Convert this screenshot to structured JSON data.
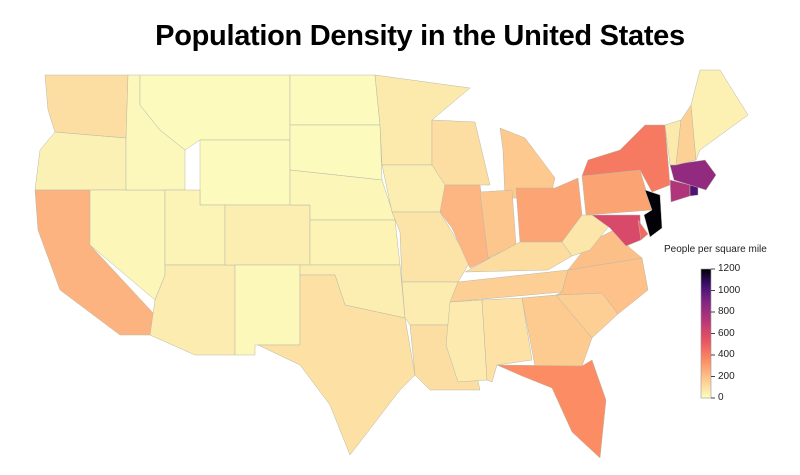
{
  "title": "Population Density in the United States",
  "legend": {
    "title": "People per square mile",
    "ticks": [
      "0",
      "200",
      "400",
      "600",
      "800",
      "1000",
      "1200"
    ],
    "range": [
      0,
      1200
    ],
    "colormap": "magma_r"
  },
  "states": [
    {
      "code": "WA",
      "density": 103
    },
    {
      "code": "OR",
      "density": 40
    },
    {
      "code": "CA",
      "density": 239
    },
    {
      "code": "NV",
      "density": 25
    },
    {
      "code": "ID",
      "density": 19
    },
    {
      "code": "MT",
      "density": 7
    },
    {
      "code": "WY",
      "density": 6
    },
    {
      "code": "UT",
      "density": 34
    },
    {
      "code": "AZ",
      "density": 57
    },
    {
      "code": "CO",
      "density": 49
    },
    {
      "code": "NM",
      "density": 17
    },
    {
      "code": "ND",
      "density": 10
    },
    {
      "code": "SD",
      "density": 11
    },
    {
      "code": "NE",
      "density": 24
    },
    {
      "code": "KS",
      "density": 35
    },
    {
      "code": "OK",
      "density": 55
    },
    {
      "code": "TX",
      "density": 97
    },
    {
      "code": "MN",
      "density": 67
    },
    {
      "code": "IA",
      "density": 55
    },
    {
      "code": "MO",
      "density": 87
    },
    {
      "code": "AR",
      "density": 56
    },
    {
      "code": "LA",
      "density": 105
    },
    {
      "code": "WI",
      "density": 105
    },
    {
      "code": "IL",
      "density": 231
    },
    {
      "code": "MI",
      "density": 174
    },
    {
      "code": "IN",
      "density": 182
    },
    {
      "code": "OH",
      "density": 283
    },
    {
      "code": "KY",
      "density": 110
    },
    {
      "code": "TN",
      "density": 154
    },
    {
      "code": "MS",
      "density": 63
    },
    {
      "code": "AL",
      "density": 94
    },
    {
      "code": "GA",
      "density": 168
    },
    {
      "code": "FL",
      "density": 351
    },
    {
      "code": "SC",
      "density": 154
    },
    {
      "code": "NC",
      "density": 196
    },
    {
      "code": "VA",
      "density": 202
    },
    {
      "code": "WV",
      "density": 77
    },
    {
      "code": "MD",
      "density": 594
    },
    {
      "code": "DE",
      "density": 460
    },
    {
      "code": "PA",
      "density": 284
    },
    {
      "code": "NJ",
      "density": 1195
    },
    {
      "code": "NY",
      "density": 412
    },
    {
      "code": "CT",
      "density": 739
    },
    {
      "code": "RI",
      "density": 1018
    },
    {
      "code": "MA",
      "density": 840
    },
    {
      "code": "VT",
      "density": 68
    },
    {
      "code": "NH",
      "density": 147
    },
    {
      "code": "ME",
      "density": 43
    }
  ]
}
